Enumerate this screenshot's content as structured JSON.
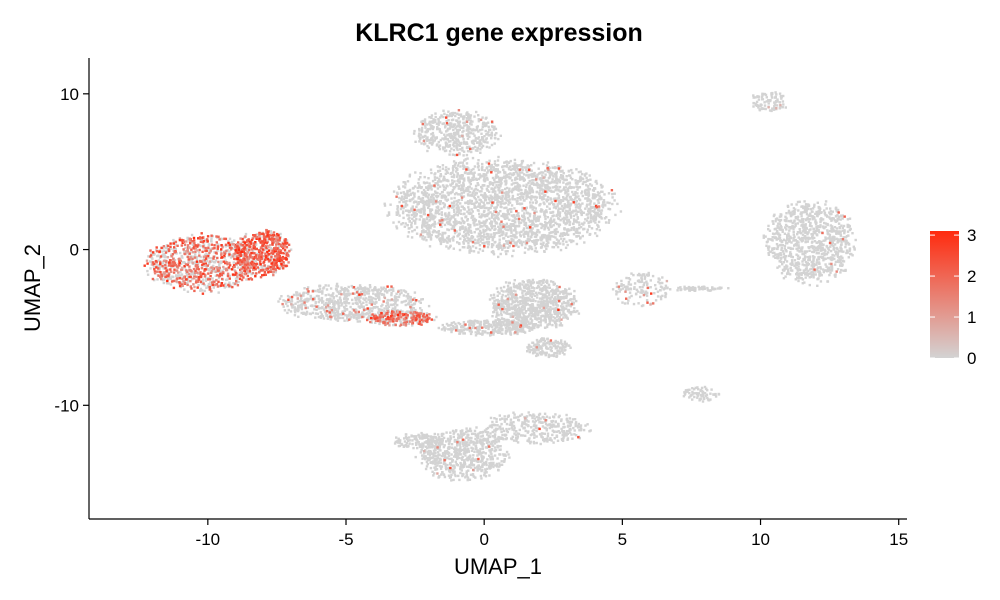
{
  "chart_data": {
    "type": "scatter",
    "title": "KLRC1 gene expression",
    "xlabel": "UMAP_1",
    "ylabel": "UMAP_2",
    "xlim": [
      -14.3,
      15.3
    ],
    "ylim": [
      -17.3,
      12.3
    ],
    "xticks": [
      -10,
      -5,
      0,
      5,
      10,
      15
    ],
    "yticks": [
      -10,
      0,
      10
    ],
    "xtick_labels": [
      "-10",
      "-5",
      "0",
      "5",
      "10",
      "15"
    ],
    "ytick_labels": [
      "-10",
      "0",
      "10"
    ],
    "grid": false,
    "legend": {
      "position": "right",
      "min": 0,
      "max": 3.1,
      "ticks": [
        0,
        1,
        2,
        3
      ],
      "tick_labels": [
        "0",
        "1",
        "2",
        "3"
      ],
      "low_color": "#d3d3d3",
      "high_color": "#ff2a0e"
    },
    "colors": {
      "background_point": "#d3d3d3",
      "mid_expression": "#f2664a",
      "high_expression": "#ff2a0e"
    },
    "clusters": [
      {
        "name": "nk-high-left",
        "cx": -10.2,
        "cy": -0.9,
        "rx": 2.0,
        "ry": 1.8,
        "n": 900,
        "expr_frac": 0.55,
        "expr_mean": 1.9
      },
      {
        "name": "nk-high-right",
        "cx": -8.0,
        "cy": -0.2,
        "rx": 1.0,
        "ry": 1.5,
        "n": 520,
        "expr_frac": 0.7,
        "expr_mean": 2.2
      },
      {
        "name": "bridge-cells",
        "cx": -4.8,
        "cy": -3.4,
        "rx": 2.6,
        "ry": 1.2,
        "n": 700,
        "expr_frac": 0.08,
        "expr_mean": 1.6
      },
      {
        "name": "cd8-subset",
        "cx": -3.0,
        "cy": -4.4,
        "rx": 1.2,
        "ry": 0.5,
        "n": 260,
        "expr_frac": 0.55,
        "expr_mean": 1.8
      },
      {
        "name": "tcell-main",
        "cx": 0.6,
        "cy": 2.8,
        "rx": 4.0,
        "ry": 3.0,
        "n": 2600,
        "expr_frac": 0.015,
        "expr_mean": 1.8
      },
      {
        "name": "tcell-top",
        "cx": -1.0,
        "cy": 7.5,
        "rx": 1.5,
        "ry": 1.4,
        "n": 450,
        "expr_frac": 0.02,
        "expr_mean": 1.8
      },
      {
        "name": "tcell-lower",
        "cx": 1.8,
        "cy": -3.5,
        "rx": 1.6,
        "ry": 1.6,
        "n": 800,
        "expr_frac": 0.015,
        "expr_mean": 1.5
      },
      {
        "name": "tcell-bottom-arm",
        "cx": 0.2,
        "cy": -5.0,
        "rx": 1.8,
        "ry": 0.5,
        "n": 300,
        "expr_frac": 0.04,
        "expr_mean": 1.5
      },
      {
        "name": "tcell-tail",
        "cx": 2.3,
        "cy": -6.3,
        "rx": 0.8,
        "ry": 0.6,
        "n": 150,
        "expr_frac": 0.01,
        "expr_mean": 1.2
      },
      {
        "name": "monocytes",
        "cx": 11.8,
        "cy": 0.5,
        "rx": 1.6,
        "ry": 2.6,
        "n": 900,
        "expr_frac": 0.01,
        "expr_mean": 1.5
      },
      {
        "name": "small-top-right",
        "cx": 10.3,
        "cy": 9.5,
        "rx": 0.7,
        "ry": 0.6,
        "n": 90,
        "expr_frac": 0.03,
        "expr_mean": 1.2
      },
      {
        "name": "mid-right-small",
        "cx": 5.7,
        "cy": -2.6,
        "rx": 1.0,
        "ry": 1.1,
        "n": 130,
        "expr_frac": 0.08,
        "expr_mean": 1.5
      },
      {
        "name": "right-bottom-small",
        "cx": 7.8,
        "cy": -9.3,
        "rx": 0.7,
        "ry": 0.5,
        "n": 70,
        "expr_frac": 0.0,
        "expr_mean": 0.0
      },
      {
        "name": "bcells-bottom",
        "cx": -0.8,
        "cy": -13.2,
        "rx": 1.6,
        "ry": 1.6,
        "n": 650,
        "expr_frac": 0.01,
        "expr_mean": 1.5
      },
      {
        "name": "bcells-arm",
        "cx": 1.8,
        "cy": -11.5,
        "rx": 2.0,
        "ry": 1.0,
        "n": 350,
        "expr_frac": 0.015,
        "expr_mean": 1.3
      },
      {
        "name": "bcells-left",
        "cx": -2.4,
        "cy": -12.3,
        "rx": 0.9,
        "ry": 0.5,
        "n": 120,
        "expr_frac": 0.0,
        "expr_mean": 0.0
      },
      {
        "name": "faint-streak",
        "cx": 7.6,
        "cy": -2.5,
        "rx": 1.2,
        "ry": 0.15,
        "n": 60,
        "expr_frac": 0.0,
        "expr_mean": 0.0
      }
    ]
  }
}
